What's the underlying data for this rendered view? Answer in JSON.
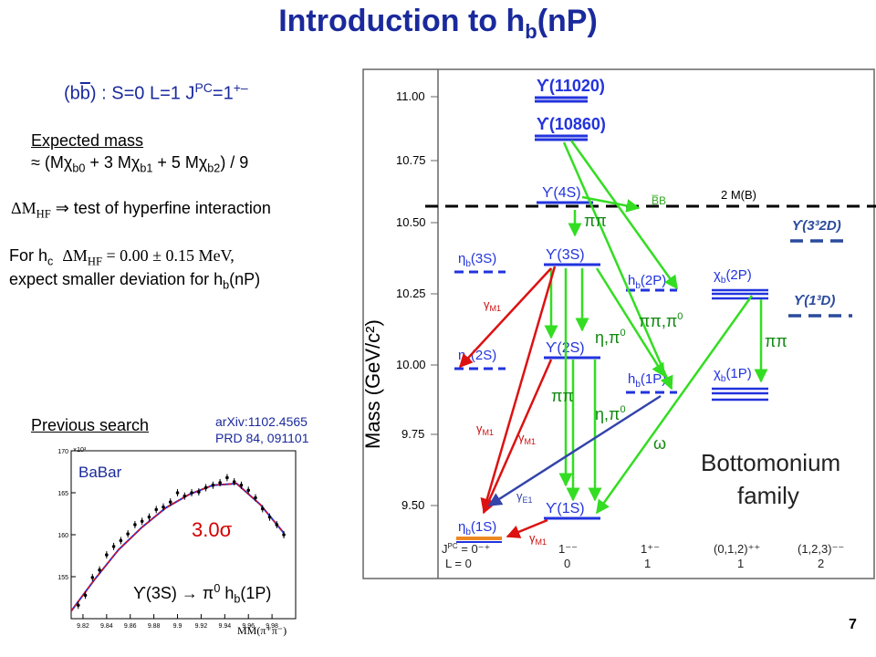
{
  "slide": {
    "title_main": "Introduction to h",
    "title_sub": "b",
    "title_tail": "(nP)",
    "page_number": "7"
  },
  "quark_line": {
    "pre": "(b",
    "bbar": "b",
    "post": ") :  S=0 L=1  J",
    "sup": "PC",
    "tail": "=1",
    "sup2": "+–"
  },
  "expected": {
    "heading": "Expected mass",
    "formula_a": "≈ (Mχ",
    "sub_a": "b0",
    "formula_b": " + 3 Mχ",
    "sub_b": "b1",
    "formula_c": " + 5 Mχ",
    "sub_c": "b2",
    "formula_d": ") / 9"
  },
  "hyperfine": {
    "symbol": "ΔM",
    "sub": "HF",
    "arrow": " ⇒ ",
    "text": "test of hyperfine interaction"
  },
  "hc": {
    "lead": "For h",
    "lead_sub": "c",
    "dm": "ΔM",
    "dm_sub": "HF",
    "value": " = 0.00 ± 0.15 MeV,",
    "line2a": "expect smaller deviation for h",
    "line2_sub": "b",
    "line2b": "(nP)"
  },
  "previous": {
    "heading": "Previous search",
    "ref1": "arXiv:1102.4565",
    "ref2": "PRD 84, 091101"
  },
  "babar_plot": {
    "experiment": "BaBar",
    "significance": "3.0σ",
    "decay_a": "ϒ(3S) → π",
    "decay_sup": "0",
    "decay_b": " h",
    "decay_sub": "b",
    "decay_c": "(1P)",
    "xlabel": "MM(π⁺π⁻)",
    "y_exponent": "×10³"
  },
  "chart_data": {
    "type": "scatter",
    "title": "",
    "xlabel": "MM(π⁺π⁻)",
    "ylabel": "",
    "xlim": [
      9.81,
      10.0
    ],
    "ylim": [
      150,
      170
    ],
    "x_ticks": [
      "9.82",
      "9.84",
      "9.86",
      "9.88",
      "9.9",
      "9.92",
      "9.94",
      "9.96",
      "9.98"
    ],
    "y_ticks": [
      "155",
      "160",
      "165",
      "170"
    ],
    "series": [
      {
        "x": [
          9.816,
          9.822,
          9.828,
          9.834,
          9.84,
          9.846,
          9.852,
          9.858,
          9.864,
          9.87,
          9.876,
          9.882,
          9.888,
          9.894,
          9.9,
          9.906,
          9.912,
          9.918,
          9.924,
          9.93,
          9.936,
          9.942,
          9.948,
          9.954,
          9.96,
          9.966,
          9.972,
          9.978,
          9.984,
          9.99
        ],
        "values": [
          151.6,
          152.8,
          154.9,
          155.8,
          157.6,
          158.6,
          159.3,
          160.1,
          161.2,
          161.6,
          162.1,
          163.0,
          163.3,
          163.9,
          165.0,
          164.6,
          165.0,
          165.1,
          165.6,
          165.9,
          166.2,
          166.8,
          166.3,
          165.9,
          165.3,
          164.4,
          163.1,
          162.1,
          161.2,
          160.0
        ]
      },
      {
        "x": [
          9.81,
          9.83,
          9.85,
          9.87,
          9.89,
          9.91,
          9.93,
          9.95,
          9.97,
          9.99
        ],
        "values": [
          150.9,
          154.7,
          158.2,
          160.9,
          163.2,
          164.8,
          165.9,
          166.1,
          163.6,
          160.2
        ]
      }
    ]
  },
  "levels": {
    "y_axis_label": "Mass (GeV/c²)",
    "y_ticks": [
      "11.00",
      "10.75",
      "10.50",
      "10.25",
      "10.00",
      "9.75",
      "9.50"
    ],
    "threshold": "2 M(B)",
    "bb": "B̅B",
    "states": {
      "u11020": "ϒ(11020)",
      "u10860": "ϒ(10860)",
      "u4s": "ϒ(4S)",
      "u3s": "ϒ(3S)",
      "u2s": "ϒ(2S)",
      "u1s": "ϒ(1S)",
      "eta3s": "η",
      "eta3s_tail": "(3S)",
      "eta2s": "η",
      "eta2s_tail": "(2S)",
      "eta1s": "η",
      "eta1s_tail": "(1S)",
      "hb2p": "h",
      "hb2p_tail": "(2P)",
      "hb1p": "h",
      "hb1p_tail": "(1P)",
      "chi2p": "χ",
      "chi2p_tail": "(2P)",
      "chi1p": "χ",
      "chi1p_tail": "(1P)",
      "u32d": "ϒ(3³2D)",
      "u31d": "ϒ(1³D)"
    },
    "trans": {
      "pipi": "ππ",
      "pipi_pi0": "ππ,π",
      "eta_pi0": "η,π",
      "omega": "ω",
      "gm1": "γ",
      "gm1_sub": "M1",
      "ge1": "γ",
      "ge1_sub": "E1",
      "zero": "0",
      "b": "b"
    },
    "jpc_row": [
      "J",
      "0⁻⁺",
      "1⁻⁻",
      "1⁺⁻",
      "(0,1,2)⁺⁺",
      "(1,2,3)⁻⁻"
    ],
    "l_row": [
      "L = 0",
      "0",
      "1",
      "1",
      "2"
    ],
    "family1": "Bottomonium",
    "family2": "family"
  }
}
